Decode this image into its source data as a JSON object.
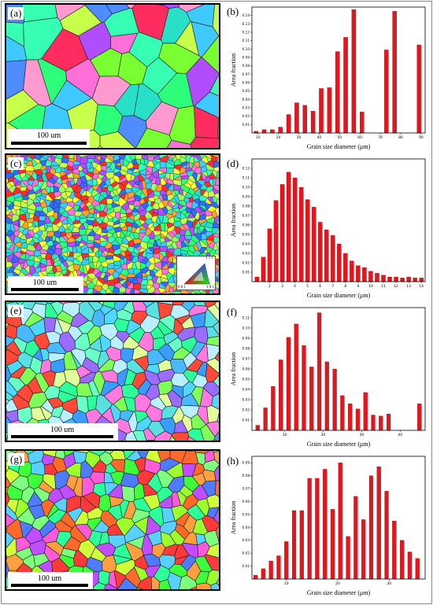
{
  "figure": {
    "frame_color": "#8a8a8a",
    "bar_color": "#e8141b"
  },
  "maps": [
    {
      "label": "(a)",
      "scale_text": "100 um",
      "scale_frac": 0.64,
      "has_legend": false,
      "grain_size": "coarse",
      "palette": [
        "#2dff7a",
        "#3ec9ff",
        "#ff6fd8",
        "#7aff32",
        "#b04dff",
        "#ff2d5f",
        "#28e0c8",
        "#9bff60",
        "#4f8cff",
        "#ff9ad0",
        "#36ffb4",
        "#c7ff4a"
      ]
    },
    {
      "label": "(c)",
      "scale_text": "100 um",
      "scale_frac": 0.3,
      "has_legend": true,
      "grain_size": "fine",
      "palette": [
        "#2dff7a",
        "#3ec9ff",
        "#ff6fd8",
        "#f7ff32",
        "#b04dff",
        "#ff2d2d",
        "#28e0c8",
        "#9bff60",
        "#2f6cff",
        "#ffa030",
        "#36ffb4",
        "#c7ff4a"
      ]
    },
    {
      "label": "(e)",
      "scale_text": "100 um",
      "scale_frac": 0.5,
      "has_legend": false,
      "grain_size": "medium",
      "palette": [
        "#4fd8ff",
        "#6affc8",
        "#3a9cff",
        "#9a6cff",
        "#2dff9a",
        "#ff4a3a",
        "#b8f0ff",
        "#5ae0e0",
        "#ff7ae0",
        "#7fff5a",
        "#49b8ff",
        "#e0ff9a"
      ]
    },
    {
      "label": "(g)",
      "scale_text": "100 um",
      "scale_frac": 0.36,
      "has_legend": false,
      "grain_size": "medium",
      "palette": [
        "#3dff3a",
        "#9cff2d",
        "#ff3a3a",
        "#ff6a2a",
        "#c04dff",
        "#2dff9a",
        "#5ad0ff",
        "#ff5ad8",
        "#7fff7f",
        "#ffa040",
        "#4f7cff",
        "#d0ff3a"
      ]
    }
  ],
  "ipf_legend": {
    "labels": [
      "1 1 1",
      "0 0 1",
      "1 0 1"
    ]
  },
  "chart_data": [
    {
      "label": "(b)",
      "type": "bar",
      "ylabel": "Area fraction",
      "xlabel": "Grain size diameter (μm)",
      "xlim": [
        7,
        92
      ],
      "ylim": [
        0,
        0.15
      ],
      "xticks": [
        10,
        20,
        30,
        40,
        50,
        60,
        70,
        80,
        90
      ],
      "yticks": [
        0.01,
        0.02,
        0.03,
        0.04,
        0.05,
        0.06,
        0.07,
        0.08,
        0.09,
        0.1,
        0.11,
        0.12,
        0.13,
        0.14
      ],
      "ytick_labels": [
        "0.01",
        "0.02",
        "0.03",
        "0.04",
        "0.05",
        "0.06",
        "0.07",
        "0.08",
        "0.09",
        "0.10",
        "0.11",
        "0.12",
        "0.13",
        "0.14"
      ],
      "bar_width": 2.0,
      "x": [
        9,
        13,
        17,
        21,
        25,
        29,
        33,
        37,
        41,
        45,
        49,
        53,
        57,
        61,
        65,
        69,
        73,
        77,
        81,
        85,
        89
      ],
      "values": [
        0.002,
        0.004,
        0.004,
        0.007,
        0.022,
        0.036,
        0.033,
        0.026,
        0.053,
        0.054,
        0.097,
        0.114,
        0.147,
        0.025,
        0.0,
        0.0,
        0.099,
        0.145,
        0.0,
        0.0,
        0.105
      ]
    },
    {
      "label": "(d)",
      "type": "bar",
      "ylabel": "Area fraction",
      "xlabel": "Grain size diameter (μm)",
      "xlim": [
        0.6,
        14.3
      ],
      "ylim": [
        0,
        0.13
      ],
      "xticks": [
        2,
        3,
        4,
        5,
        6,
        7,
        8,
        9,
        10,
        11,
        12,
        13,
        14
      ],
      "yticks": [
        0.01,
        0.02,
        0.03,
        0.04,
        0.05,
        0.06,
        0.07,
        0.08,
        0.09,
        0.1,
        0.11,
        0.12
      ],
      "ytick_labels": [
        "0.01",
        "0.02",
        "0.03",
        "0.04",
        "0.05",
        "0.06",
        "0.07",
        "0.08",
        "0.09",
        "0.10",
        "0.11",
        "0.12"
      ],
      "bar_width": 0.32,
      "x": [
        1,
        1.5,
        2,
        2.5,
        3,
        3.5,
        4,
        4.5,
        5,
        5.5,
        6,
        6.5,
        7,
        7.5,
        8,
        8.5,
        9,
        9.5,
        10,
        10.5,
        11,
        11.5,
        12,
        12.5,
        13,
        13.5,
        14
      ],
      "values": [
        0.005,
        0.026,
        0.056,
        0.086,
        0.103,
        0.116,
        0.11,
        0.1,
        0.087,
        0.079,
        0.063,
        0.055,
        0.049,
        0.04,
        0.03,
        0.022,
        0.017,
        0.015,
        0.011,
        0.009,
        0.007,
        0.005,
        0.005,
        0.004,
        0.005,
        0.004,
        0.004
      ]
    },
    {
      "label": "(f)",
      "type": "bar",
      "ylabel": "Area fraction",
      "xlabel": "Grain size diameter (μm)",
      "xlim": [
        1.5,
        46.5
      ],
      "ylim": [
        0,
        0.12
      ],
      "xticks": [
        10,
        20,
        30,
        40
      ],
      "yticks": [
        0.01,
        0.02,
        0.03,
        0.04,
        0.05,
        0.06,
        0.07,
        0.08,
        0.09,
        0.1,
        0.11
      ],
      "ytick_labels": [
        "0.01",
        "0.02",
        "0.03",
        "0.04",
        "0.05",
        "0.06",
        "0.07",
        "0.08",
        "0.09",
        "0.10",
        "0.11"
      ],
      "bar_width": 1.0,
      "x": [
        3,
        5,
        7,
        9,
        11,
        13,
        15,
        17,
        19,
        21,
        23,
        25,
        27,
        29,
        31,
        33,
        35,
        37,
        39,
        41,
        43,
        45
      ],
      "values": [
        0.005,
        0.022,
        0.043,
        0.069,
        0.091,
        0.104,
        0.083,
        0.062,
        0.115,
        0.067,
        0.06,
        0.034,
        0.026,
        0.021,
        0.037,
        0.015,
        0.014,
        0.016,
        0.0,
        0.0,
        0.0,
        0.026
      ]
    },
    {
      "label": "(h)",
      "type": "bar",
      "ylabel": "Area fraction",
      "xlabel": "Grain size diameter (μm)",
      "xlim": [
        3.3,
        37
      ],
      "ylim": [
        0,
        0.095
      ],
      "xticks": [
        10,
        20,
        30
      ],
      "yticks": [
        0.01,
        0.02,
        0.03,
        0.04,
        0.05,
        0.06,
        0.07,
        0.08,
        0.09
      ],
      "ytick_labels": [
        "0.01",
        "0.02",
        "0.03",
        "0.04",
        "0.05",
        "0.06",
        "0.07",
        "0.08",
        "0.09"
      ],
      "bar_width": 0.75,
      "x": [
        4,
        5.5,
        7,
        8.5,
        10,
        11.5,
        13,
        14.5,
        16,
        17.5,
        19,
        20.5,
        22,
        23.5,
        25,
        26.5,
        28,
        29.5,
        31,
        32.5,
        34,
        35.5
      ],
      "values": [
        0.003,
        0.008,
        0.014,
        0.018,
        0.029,
        0.053,
        0.053,
        0.078,
        0.078,
        0.085,
        0.054,
        0.09,
        0.033,
        0.064,
        0.046,
        0.08,
        0.087,
        0.068,
        0.045,
        0.03,
        0.021,
        0.016
      ]
    }
  ]
}
